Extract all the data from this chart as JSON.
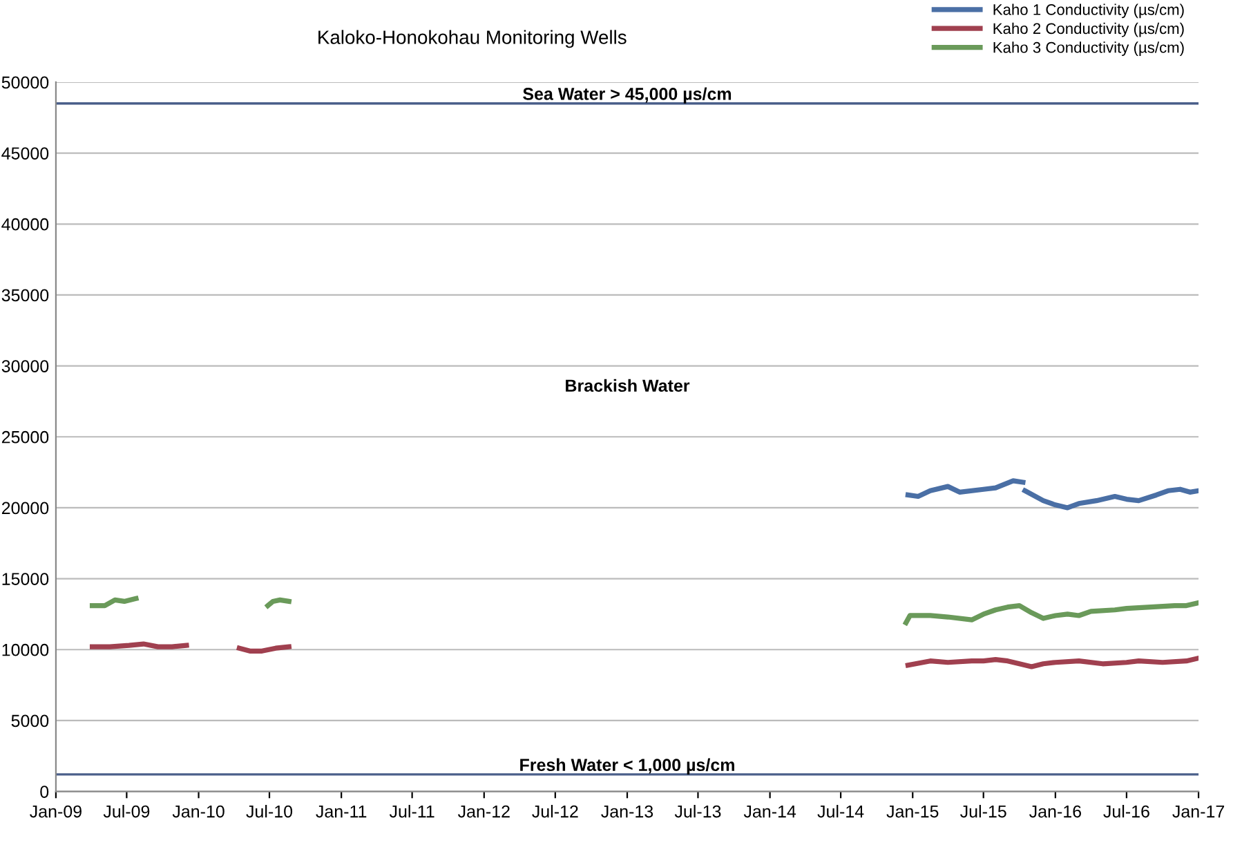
{
  "chart_data": {
    "type": "line",
    "title": "Kaloko-Honokohau Monitoring Wells",
    "xlim": [
      "2009-01-01",
      "2017-01-01"
    ],
    "xticks": [
      {
        "value": "2009-01-01",
        "label": "Jan-09"
      },
      {
        "value": "2009-07-01",
        "label": "Jul-09"
      },
      {
        "value": "2010-01-01",
        "label": "Jan-10"
      },
      {
        "value": "2010-07-01",
        "label": "Jul-10"
      },
      {
        "value": "2011-01-01",
        "label": "Jan-11"
      },
      {
        "value": "2011-07-01",
        "label": "Jul-11"
      },
      {
        "value": "2012-01-01",
        "label": "Jan-12"
      },
      {
        "value": "2012-07-01",
        "label": "Jul-12"
      },
      {
        "value": "2013-01-01",
        "label": "Jan-13"
      },
      {
        "value": "2013-07-01",
        "label": "Jul-13"
      },
      {
        "value": "2014-01-01",
        "label": "Jan-14"
      },
      {
        "value": "2014-07-01",
        "label": "Jul-14"
      },
      {
        "value": "2015-01-01",
        "label": "Jan-15"
      },
      {
        "value": "2015-07-01",
        "label": "Jul-15"
      },
      {
        "value": "2016-01-01",
        "label": "Jan-16"
      },
      {
        "value": "2016-07-01",
        "label": "Jul-16"
      },
      {
        "value": "2017-01-01",
        "label": "Jan-17"
      }
    ],
    "ylim": [
      0,
      50000
    ],
    "yticks": [
      0,
      5000,
      10000,
      15000,
      20000,
      25000,
      30000,
      35000,
      40000,
      45000,
      50000
    ],
    "grid": "y",
    "legend": "top right",
    "line_style": "solid",
    "marker": "none",
    "annotations": [
      "Brackish Water"
    ],
    "ref_lines": [
      {
        "axis": "y",
        "value": 48500,
        "label": "Sea Water > 45,000 µs/cm",
        "color": "#4a5f8a"
      },
      {
        "axis": "y",
        "value": 1200,
        "label": "Fresh Water < 1,000 µs/cm",
        "color": "#4a5f8a"
      }
    ],
    "series": [
      {
        "name": "Kaho 1 Conductivity (µs/cm)",
        "color": "#4a6fa5",
        "x": [
          "2014-12-20",
          "2015-01-15",
          "2015-02-15",
          "2015-04-01",
          "2015-05-01",
          "2015-07-01",
          "2015-08-01",
          "2015-09-15",
          "2015-10-10",
          "2015-10-12",
          "2015-10-15",
          "2015-12-01",
          "2016-01-01",
          "2016-02-01",
          "2016-03-01",
          "2016-04-15",
          "2016-06-01",
          "2016-07-01",
          "2016-08-01",
          "2016-09-15",
          "2016-10-15",
          "2016-11-15",
          "2016-12-10",
          "2017-01-01"
        ],
        "values": [
          20900,
          20800,
          21200,
          21500,
          21100,
          21300,
          21400,
          21900,
          21800,
          null,
          21200,
          20500,
          20200,
          20000,
          20300,
          20500,
          20800,
          20600,
          20500,
          20900,
          21200,
          21300,
          21100,
          21200
        ]
      },
      {
        "name": "Kaho 2 Conductivity (µs/cm)",
        "color": "#a0404f",
        "x": [
          "2009-04-04",
          "2009-05-19",
          "2009-07-07",
          "2009-08-13",
          "2009-09-19",
          "2009-10-25",
          "2009-12-01",
          "2010-02-15",
          "2010-04-15",
          "2010-05-12",
          "2010-06-12",
          "2010-07-17",
          "2010-08-20",
          "2012-06-01",
          "2014-12-20",
          "2015-02-15",
          "2015-04-01",
          "2015-06-01",
          "2015-07-01",
          "2015-08-01",
          "2015-09-01",
          "2015-10-01",
          "2015-11-01",
          "2015-12-01",
          "2016-01-01",
          "2016-03-01",
          "2016-05-01",
          "2016-07-01",
          "2016-08-01",
          "2016-10-01",
          "2016-12-01",
          "2017-01-01"
        ],
        "values": [
          10200,
          10200,
          10300,
          10400,
          10200,
          10200,
          10300,
          null,
          10100,
          9900,
          9900,
          10100,
          10200,
          null,
          8900,
          9200,
          9100,
          9200,
          9200,
          9300,
          9200,
          9000,
          8800,
          9000,
          9100,
          9200,
          9000,
          9100,
          9200,
          9100,
          9200,
          9400
        ]
      },
      {
        "name": "Kaho 3 Conductivity (µs/cm)",
        "color": "#6a9a5a",
        "x": [
          "2009-04-04",
          "2009-05-06",
          "2009-06-01",
          "2009-06-25",
          "2009-07-25",
          "2010-01-01",
          "2010-06-27",
          "2010-07-10",
          "2010-07-28",
          "2010-08-20",
          "2012-06-01",
          "2014-12-15",
          "2014-12-25",
          "2015-02-15",
          "2015-04-01",
          "2015-06-01",
          "2015-07-01",
          "2015-08-01",
          "2015-09-01",
          "2015-10-01",
          "2015-11-01",
          "2015-12-01",
          "2016-01-01",
          "2016-02-01",
          "2016-03-01",
          "2016-04-01",
          "2016-06-01",
          "2016-07-01",
          "2016-09-01",
          "2016-11-01",
          "2016-12-01",
          "2017-01-01"
        ],
        "values": [
          13100,
          13100,
          13500,
          13400,
          13600,
          null,
          13100,
          13400,
          13500,
          13400,
          null,
          11900,
          12400,
          12400,
          12300,
          12100,
          12500,
          12800,
          13000,
          13100,
          12600,
          12200,
          12400,
          12500,
          12400,
          12700,
          12800,
          12900,
          13000,
          13100,
          13100,
          13300
        ]
      }
    ]
  }
}
